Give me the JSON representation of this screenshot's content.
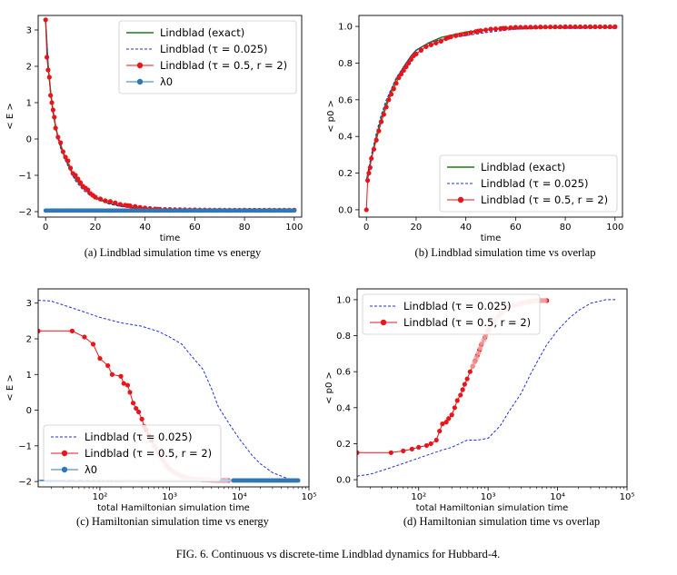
{
  "figure_caption": "FIG. 6.  Continuous vs discrete-time Lindblad dynamics for Hubbard-4.",
  "colors": {
    "exact": "#1a7f1a",
    "tau_small": "#1f2fd6",
    "tau_large": "#e8161b",
    "lambda0": "#2f78b5",
    "tau_large_faded": "#f2a0a0"
  },
  "chart_data": [
    {
      "id": "a",
      "type": "line",
      "caption": "(a) Lindblad simulation time vs energy",
      "xlabel": "time",
      "ylabel": "< E >",
      "xlim": [
        -3,
        103
      ],
      "ylim": [
        -2.15,
        3.4
      ],
      "xscale": "linear",
      "xticks": [
        0,
        20,
        40,
        60,
        80,
        100
      ],
      "yticks": [
        -2,
        -1,
        0,
        1,
        2,
        3
      ],
      "legend": [
        "Lindblad (exact)",
        "Lindblad (τ = 0.025)",
        "Lindblad (τ = 0.5, r = 2)",
        "λ0"
      ],
      "legend_position": "top-right",
      "series": [
        {
          "name": "Lindblad (exact)",
          "style": "solid",
          "color": "exact",
          "x": [
            0,
            1,
            2,
            3,
            4,
            5,
            6,
            8,
            10,
            12,
            15,
            18,
            21,
            25,
            30,
            35,
            40,
            50,
            60,
            80,
            100
          ],
          "y": [
            3.25,
            2.05,
            1.3,
            0.75,
            0.35,
            0.05,
            -0.2,
            -0.55,
            -0.85,
            -1.1,
            -1.35,
            -1.52,
            -1.65,
            -1.76,
            -1.84,
            -1.89,
            -1.92,
            -1.95,
            -1.96,
            -1.97,
            -1.97
          ]
        },
        {
          "name": "Lindblad (τ = 0.025)",
          "style": "dashed",
          "color": "tau_small",
          "x": [
            0,
            1,
            2,
            3,
            4,
            5,
            6,
            8,
            10,
            12,
            15,
            18,
            21,
            25,
            30,
            35,
            40,
            50,
            60,
            80,
            100
          ],
          "y": [
            3.25,
            2.0,
            1.25,
            0.7,
            0.3,
            0.0,
            -0.25,
            -0.6,
            -0.9,
            -1.15,
            -1.4,
            -1.56,
            -1.68,
            -1.78,
            -1.86,
            -1.9,
            -1.93,
            -1.95,
            -1.96,
            -1.97,
            -1.97
          ]
        },
        {
          "name": "Lindblad (τ = 0.5, r = 2)",
          "style": "markers",
          "color": "tau_large",
          "x": [
            0,
            0.5,
            1,
            1.5,
            2,
            2.5,
            3,
            3.5,
            4,
            5,
            6,
            7,
            8,
            9,
            10,
            11,
            12,
            13,
            14,
            15,
            16,
            17,
            18,
            19,
            20,
            22,
            24,
            26,
            28,
            30,
            33,
            36,
            40,
            45,
            50,
            60,
            70,
            80,
            90,
            100
          ],
          "y": [
            3.28,
            2.25,
            1.9,
            1.7,
            1.2,
            1.0,
            0.8,
            0.6,
            0.3,
            0.05,
            -0.1,
            -0.35,
            -0.5,
            -0.6,
            -0.8,
            -0.95,
            -1.0,
            -1.1,
            -1.2,
            -1.3,
            -1.35,
            -1.4,
            -1.5,
            -1.55,
            -1.6,
            -1.65,
            -1.7,
            -1.72,
            -1.76,
            -1.8,
            -1.83,
            -1.86,
            -1.9,
            -1.93,
            -1.94,
            -1.95,
            -1.96,
            -1.96,
            -1.96,
            -1.96
          ]
        },
        {
          "name": "λ0",
          "style": "flat-markers",
          "color": "lambda0",
          "x": [
            0,
            100
          ],
          "y": [
            -1.97,
            -1.97
          ]
        }
      ]
    },
    {
      "id": "b",
      "type": "line",
      "caption": "(b) Lindblad simulation time vs overlap",
      "xlabel": "time",
      "ylabel": "< p0 >",
      "xlim": [
        -3,
        103
      ],
      "ylim": [
        -0.04,
        1.06
      ],
      "xscale": "linear",
      "xticks": [
        0,
        20,
        40,
        60,
        80,
        100
      ],
      "yticks": [
        0.0,
        0.2,
        0.4,
        0.6,
        0.8,
        1.0
      ],
      "legend": [
        "Lindblad (exact)",
        "Lindblad (τ = 0.025)",
        "Lindblad (τ = 0.5, r = 2)"
      ],
      "legend_position": "bottom-right",
      "series": [
        {
          "name": "Lindblad (exact)",
          "style": "solid",
          "color": "exact",
          "x": [
            0,
            2,
            4,
            6,
            8,
            10,
            12,
            15,
            18,
            20,
            25,
            30,
            40,
            50,
            60,
            80,
            100
          ],
          "y": [
            0.16,
            0.28,
            0.4,
            0.5,
            0.58,
            0.65,
            0.71,
            0.78,
            0.84,
            0.87,
            0.91,
            0.94,
            0.97,
            0.985,
            0.99,
            0.995,
            0.995
          ]
        },
        {
          "name": "Lindblad (τ = 0.025)",
          "style": "dashed",
          "color": "tau_small",
          "x": [
            0,
            2,
            4,
            6,
            8,
            10,
            12,
            15,
            18,
            20,
            25,
            30,
            40,
            50,
            60,
            80,
            100
          ],
          "y": [
            0.16,
            0.3,
            0.42,
            0.52,
            0.6,
            0.66,
            0.72,
            0.78,
            0.84,
            0.87,
            0.91,
            0.93,
            0.95,
            0.97,
            0.985,
            0.99,
            0.99
          ]
        },
        {
          "name": "Lindblad (τ = 0.5, r = 2)",
          "style": "markers",
          "color": "tau_large",
          "x": [
            0,
            0.5,
            1,
            1.5,
            2,
            3,
            4,
            5,
            6,
            7,
            8,
            9,
            10,
            11,
            12,
            13,
            14,
            15,
            16,
            17,
            18,
            19,
            20,
            22,
            24,
            26,
            28,
            30,
            33,
            36,
            40,
            45,
            50,
            55,
            60,
            70,
            80,
            90,
            100
          ],
          "y": [
            0.0,
            0.16,
            0.2,
            0.23,
            0.28,
            0.33,
            0.38,
            0.43,
            0.48,
            0.52,
            0.56,
            0.6,
            0.63,
            0.66,
            0.69,
            0.72,
            0.74,
            0.76,
            0.78,
            0.8,
            0.82,
            0.84,
            0.85,
            0.87,
            0.89,
            0.9,
            0.91,
            0.92,
            0.94,
            0.95,
            0.96,
            0.975,
            0.985,
            0.99,
            0.995,
            0.997,
            0.998,
            0.998,
            0.998
          ]
        }
      ]
    },
    {
      "id": "c",
      "type": "line",
      "caption": "(c) Hamiltonian simulation time vs energy",
      "xlabel": "total Hamiltonian simulation time",
      "ylabel": "< E >",
      "xlim": [
        13,
        100000
      ],
      "ylim": [
        -2.15,
        3.4
      ],
      "xscale": "log",
      "xticks": [
        100,
        1000,
        10000,
        100000
      ],
      "xticklabels": [
        "10²",
        "10³",
        "10⁴",
        "10⁵"
      ],
      "yticks": [
        -2,
        -1,
        0,
        1,
        2,
        3
      ],
      "legend": [
        "Lindblad (τ = 0.025)",
        "Lindblad (τ = 0.5, r = 2)",
        "λ0"
      ],
      "legend_position": "bottom-left",
      "series": [
        {
          "name": "Lindblad (τ = 0.025)",
          "style": "dashed",
          "color": "tau_small",
          "x": [
            13,
            20,
            35,
            60,
            100,
            200,
            400,
            700,
            1000,
            1500,
            2000,
            3000,
            4000,
            5000,
            7000,
            10000,
            15000,
            20000,
            30000,
            50000,
            70000
          ],
          "y": [
            3.08,
            3.06,
            2.9,
            2.75,
            2.6,
            2.45,
            2.35,
            2.2,
            2.05,
            1.85,
            1.55,
            1.15,
            0.6,
            0.1,
            -0.35,
            -0.8,
            -1.25,
            -1.5,
            -1.75,
            -1.92,
            -1.95
          ]
        },
        {
          "name": "Lindblad (τ = 0.5, r = 2)",
          "style": "markers",
          "color": "tau_large",
          "x": [
            13,
            40,
            60,
            80,
            100,
            130,
            150,
            200,
            220,
            250,
            270,
            300,
            330,
            360,
            400,
            430,
            460,
            500,
            550,
            600,
            650,
            700,
            750,
            800,
            900,
            1000,
            1200,
            1500,
            2000,
            3000,
            4000,
            5000,
            6000,
            7000
          ],
          "y": [
            2.22,
            2.22,
            2.05,
            1.85,
            1.45,
            1.25,
            1.0,
            0.95,
            0.75,
            0.7,
            0.5,
            0.2,
            0.05,
            -0.05,
            -0.25,
            -0.45,
            -0.55,
            -0.7,
            -0.85,
            -1.0,
            -1.1,
            -1.2,
            -1.3,
            -1.4,
            -1.55,
            -1.65,
            -1.75,
            -1.85,
            -1.92,
            -1.95,
            -1.96,
            -1.97,
            -1.97,
            -1.97
          ]
        },
        {
          "name": "λ0",
          "style": "flat-markers",
          "color": "lambda0",
          "x": [
            13,
            70000
          ],
          "y": [
            -1.97,
            -1.97
          ]
        }
      ]
    },
    {
      "id": "d",
      "type": "line",
      "caption": "(d) Hamiltonian simulation time vs overlap",
      "xlabel": "total Hamiltonian simulation time",
      "ylabel": "< p0 >",
      "xlim": [
        13,
        100000
      ],
      "ylim": [
        -0.04,
        1.06
      ],
      "xscale": "log",
      "xticks": [
        100,
        1000,
        10000,
        100000
      ],
      "xticklabels": [
        "10²",
        "10³",
        "10⁴",
        "10⁵"
      ],
      "yticks": [
        0.0,
        0.2,
        0.4,
        0.6,
        0.8,
        1.0
      ],
      "legend": [
        "Lindblad (τ = 0.025)",
        "Lindblad (τ = 0.5, r = 2)"
      ],
      "legend_position": "top-left",
      "series": [
        {
          "name": "Lindblad (τ = 0.025)",
          "style": "dashed",
          "color": "tau_small",
          "x": [
            13,
            20,
            35,
            60,
            100,
            200,
            300,
            500,
            700,
            1000,
            1500,
            2000,
            3000,
            4000,
            5000,
            7000,
            10000,
            15000,
            20000,
            30000,
            50000,
            70000
          ],
          "y": [
            0.02,
            0.03,
            0.06,
            0.09,
            0.12,
            0.16,
            0.18,
            0.22,
            0.22,
            0.23,
            0.3,
            0.38,
            0.48,
            0.58,
            0.65,
            0.75,
            0.83,
            0.9,
            0.94,
            0.98,
            1.0,
            1.0
          ]
        },
        {
          "name": "Lindblad (τ = 0.5, r = 2)",
          "style": "markers",
          "color": "tau_large",
          "x": [
            13,
            40,
            60,
            80,
            100,
            130,
            150,
            180,
            200,
            220,
            250,
            270,
            300,
            330,
            360,
            400,
            430,
            460,
            500,
            550,
            600,
            650,
            700,
            750,
            800,
            900,
            1000,
            1200,
            1500,
            2000,
            3000,
            4000,
            5000,
            7000
          ],
          "y": [
            0.15,
            0.15,
            0.16,
            0.17,
            0.18,
            0.19,
            0.2,
            0.22,
            0.27,
            0.31,
            0.32,
            0.34,
            0.36,
            0.4,
            0.44,
            0.47,
            0.5,
            0.53,
            0.56,
            0.6,
            0.63,
            0.66,
            0.69,
            0.72,
            0.75,
            0.79,
            0.83,
            0.88,
            0.92,
            0.96,
            0.98,
            0.99,
            0.995,
            0.995
          ]
        }
      ]
    }
  ]
}
